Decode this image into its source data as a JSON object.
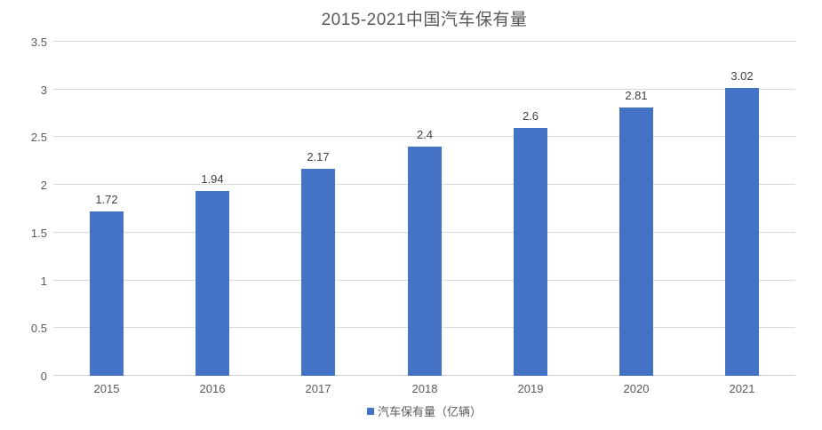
{
  "chart_data": {
    "type": "bar",
    "title": "2015-2021中国汽车保有量",
    "categories": [
      "2015",
      "2016",
      "2017",
      "2018",
      "2019",
      "2020",
      "2021"
    ],
    "values": [
      1.72,
      1.94,
      2.17,
      2.4,
      2.6,
      2.81,
      3.02
    ],
    "data_labels": [
      "1.72",
      "1.94",
      "2.17",
      "2.4",
      "2.6",
      "2.81",
      "3.02"
    ],
    "series_name": "汽车保有量（亿辆）",
    "legend": {
      "label": "汽车保有量（亿辆）",
      "position": "bottom"
    },
    "xlabel": "",
    "ylabel": "",
    "ylim": [
      0,
      3.5
    ],
    "ytick_step": 0.5,
    "yticks": [
      "0",
      "0.5",
      "1",
      "1.5",
      "2",
      "2.5",
      "3",
      "3.5"
    ],
    "grid": true,
    "colors": {
      "bar": "#4472c4",
      "gridline": "#d9d9d9",
      "axis_line": "#d0d0d0",
      "title_text": "#595959",
      "axis_text": "#595959",
      "data_label_text": "#404040",
      "legend_text": "#595959"
    }
  }
}
